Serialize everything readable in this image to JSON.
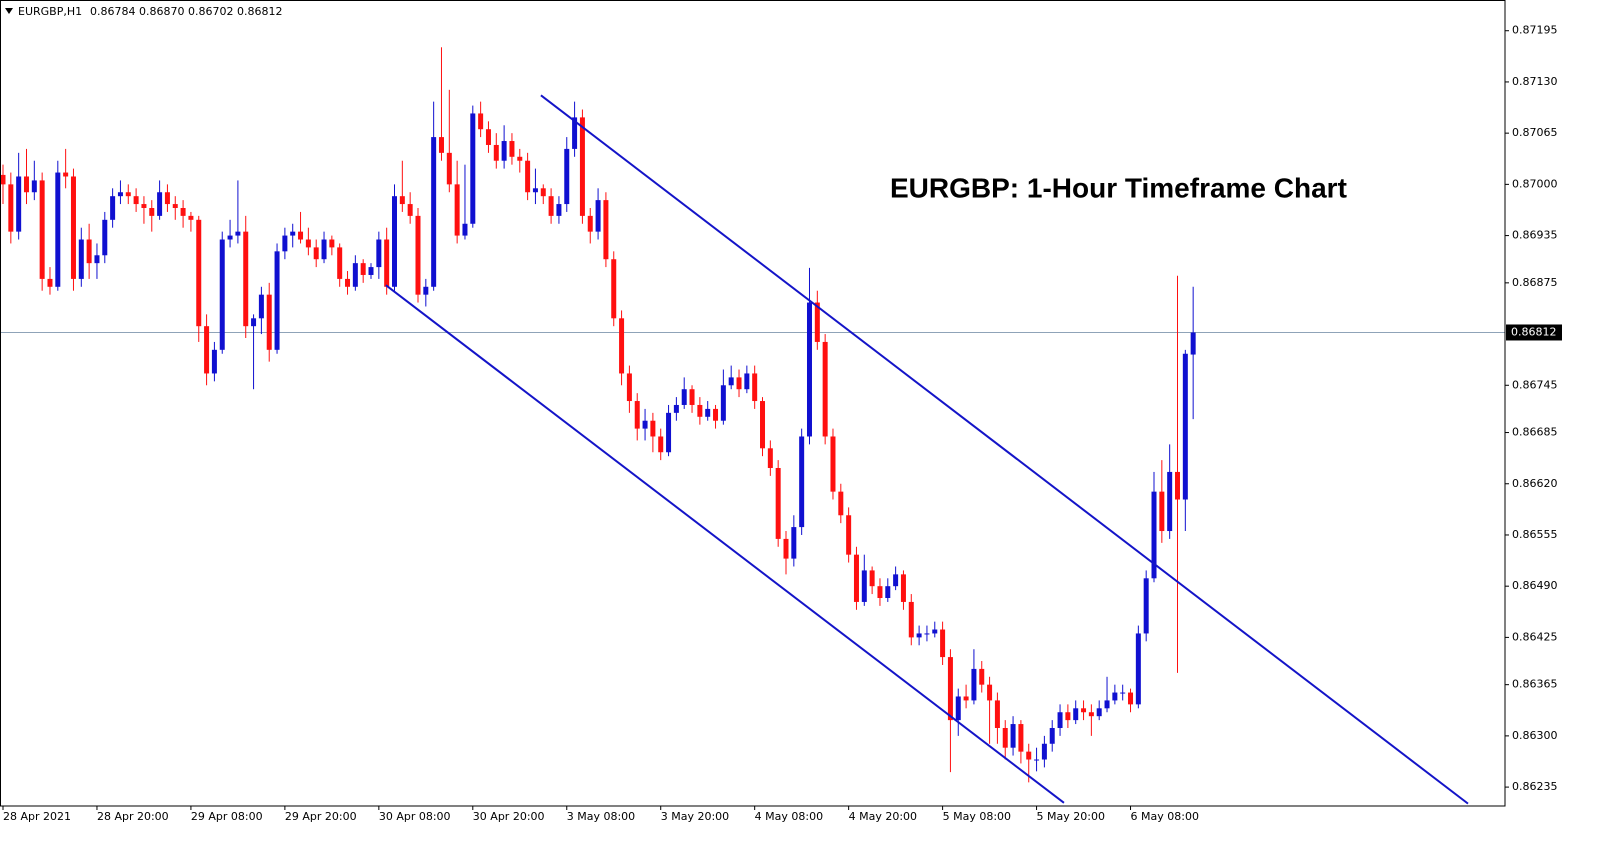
{
  "chart_data": {
    "type": "candlestick",
    "title": "EURGBP: 1-Hour Timeframe Chart",
    "symbol": "EURGBP,H1",
    "quote": "0.86784 0.86870 0.86702 0.86812",
    "up_color": "#1010d0",
    "down_color": "#ff1010",
    "trendline_color": "#1414c8",
    "price_line_color": "#8fa3b8",
    "ylim": [
      0.86211,
      0.87234
    ],
    "yticks": [
      0.87195,
      {
        "value": 0.8713,
        "label": "0.87130"
      },
      0.87065,
      {
        "value": 0.87,
        "label": "0.87000"
      },
      0.86935,
      0.86875,
      0.86745,
      0.86685,
      {
        "value": 0.8662,
        "label": "0.86620"
      },
      0.86555,
      {
        "value": 0.8649,
        "label": "0.86490"
      },
      0.86425,
      0.86365,
      {
        "value": 0.863,
        "label": "0.86300"
      },
      0.86235
    ],
    "current_price": 0.86812,
    "x_labels": [
      "28 Apr 2021",
      "28 Apr 20:00",
      "29 Apr 08:00",
      "29 Apr 20:00",
      "30 Apr 08:00",
      "30 Apr 20:00",
      "3 May 08:00",
      "3 May 20:00",
      "4 May 08:00",
      "4 May 20:00",
      "5 May 08:00",
      "5 May 20:00",
      "6 May 08:00"
    ],
    "trendlines": [
      {
        "x": [
          68.7,
          187.1
        ],
        "y": [
          0.87113,
          0.86214
        ]
      },
      {
        "x": [
          48.9,
          135.5
        ],
        "y": [
          0.86872,
          0.86215
        ]
      }
    ],
    "open": [
      0.87012,
      0.87,
      0.8694,
      0.8701,
      0.8699,
      0.87005,
      0.8688,
      0.8687,
      0.87015,
      0.8701,
      0.8688,
      0.8693,
      0.869,
      0.8691,
      0.86955,
      0.86985,
      0.8699,
      0.86985,
      0.86975,
      0.8697,
      0.8696,
      0.8699,
      0.86975,
      0.8697,
      0.8696,
      0.86955,
      0.8682,
      0.8676,
      0.8679,
      0.8693,
      0.86935,
      0.8694,
      0.8682,
      0.8683,
      0.8686,
      0.8679,
      0.86915,
      0.86935,
      0.8694,
      0.8693,
      0.8692,
      0.86905,
      0.8693,
      0.8692,
      0.8688,
      0.8687,
      0.869,
      0.86885,
      0.86895,
      0.8693,
      0.8687,
      0.86985,
      0.86975,
      0.8696,
      0.8686,
      0.8687,
      0.8706,
      0.8704,
      0.87,
      0.86935,
      0.8695,
      0.8709,
      0.8707,
      0.8705,
      0.8703,
      0.87055,
      0.87035,
      0.8703,
      0.8699,
      0.86995,
      0.86985,
      0.8696,
      0.86975,
      0.87045,
      0.87085,
      0.8696,
      0.8694,
      0.8698,
      0.86905,
      0.8683,
      0.8676,
      0.86725,
      0.8669,
      0.867,
      0.8668,
      0.8666,
      0.8671,
      0.8672,
      0.8674,
      0.8672,
      0.86705,
      0.86715,
      0.867,
      0.86745,
      0.86755,
      0.8674,
      0.8676,
      0.86725,
      0.86665,
      0.8664,
      0.8655,
      0.86525,
      0.86565,
      0.8668,
      0.8685,
      0.868,
      0.8668,
      0.8661,
      0.8658,
      0.8653,
      0.8647,
      0.8651,
      0.8649,
      0.86475,
      0.8649,
      0.86505,
      0.8647,
      0.86425,
      0.8643,
      0.8643,
      0.86435,
      0.864,
      0.8632,
      0.8635,
      0.86345,
      0.86385,
      0.86365,
      0.86345,
      0.8631,
      0.86285,
      0.86315,
      0.8628,
      0.8627,
      0.8627,
      0.8629,
      0.8631,
      0.8633,
      0.8632,
      0.86335,
      0.8633,
      0.86325,
      0.86335,
      0.86345,
      0.86355,
      0.86355,
      0.8634,
      0.8643,
      0.865,
      0.8661,
      0.8656,
      0.86635,
      0.866,
      0.86784
    ],
    "high": [
      0.87025,
      0.87015,
      0.8704,
      0.87045,
      0.8703,
      0.87015,
      0.86895,
      0.8703,
      0.87045,
      0.8702,
      0.86945,
      0.8695,
      0.86925,
      0.86965,
      0.86995,
      0.87005,
      0.87,
      0.86995,
      0.86985,
      0.8698,
      0.87005,
      0.87,
      0.86985,
      0.8698,
      0.86965,
      0.8696,
      0.86835,
      0.868,
      0.8694,
      0.86955,
      0.87005,
      0.8696,
      0.86835,
      0.8687,
      0.86875,
      0.86925,
      0.86945,
      0.8695,
      0.86965,
      0.86945,
      0.8693,
      0.8694,
      0.86935,
      0.86925,
      0.8689,
      0.8691,
      0.86905,
      0.869,
      0.8694,
      0.86945,
      0.87,
      0.8703,
      0.8699,
      0.8697,
      0.8688,
      0.87105,
      0.87174,
      0.8712,
      0.8703,
      0.87025,
      0.871,
      0.87105,
      0.8708,
      0.87065,
      0.87075,
      0.87065,
      0.87045,
      0.8704,
      0.8702,
      0.87,
      0.86995,
      0.86985,
      0.8706,
      0.87105,
      0.87095,
      0.8697,
      0.86995,
      0.8699,
      0.86915,
      0.8684,
      0.8677,
      0.86735,
      0.86715,
      0.8671,
      0.8669,
      0.8672,
      0.8673,
      0.86755,
      0.86745,
      0.8673,
      0.86725,
      0.8672,
      0.86765,
      0.8677,
      0.86765,
      0.8677,
      0.8677,
      0.8673,
      0.86675,
      0.8665,
      0.8656,
      0.8658,
      0.8669,
      0.86894,
      0.86865,
      0.8681,
      0.8669,
      0.8662,
      0.8659,
      0.8654,
      0.8653,
      0.86515,
      0.865,
      0.865,
      0.86515,
      0.8651,
      0.8648,
      0.8644,
      0.8644,
      0.86445,
      0.86445,
      0.8641,
      0.8636,
      0.86365,
      0.8641,
      0.86395,
      0.86375,
      0.86355,
      0.8632,
      0.86325,
      0.8632,
      0.8629,
      0.86285,
      0.863,
      0.8632,
      0.8634,
      0.8634,
      0.86345,
      0.86345,
      0.8634,
      0.86345,
      0.86375,
      0.86365,
      0.86365,
      0.8636,
      0.8644,
      0.8651,
      0.86635,
      0.8665,
      0.8667,
      0.86884,
      0.8679,
      0.8687
    ],
    "low": [
      0.86975,
      0.86925,
      0.8693,
      0.86975,
      0.8698,
      0.86865,
      0.8686,
      0.86865,
      0.86995,
      0.86865,
      0.8687,
      0.8688,
      0.8688,
      0.869,
      0.86945,
      0.86975,
      0.86975,
      0.86965,
      0.8695,
      0.8694,
      0.86955,
      0.86965,
      0.86955,
      0.86945,
      0.8694,
      0.868,
      0.86745,
      0.8675,
      0.86785,
      0.8692,
      0.86925,
      0.86805,
      0.8674,
      0.8681,
      0.86775,
      0.86785,
      0.86905,
      0.8692,
      0.86925,
      0.8691,
      0.86895,
      0.869,
      0.8691,
      0.8687,
      0.8686,
      0.86865,
      0.86875,
      0.8688,
      0.8688,
      0.8686,
      0.86865,
      0.86965,
      0.8695,
      0.8685,
      0.86845,
      0.86865,
      0.8703,
      0.8699,
      0.86925,
      0.8693,
      0.86945,
      0.8706,
      0.8704,
      0.8702,
      0.8702,
      0.87025,
      0.87015,
      0.8698,
      0.86975,
      0.86975,
      0.8695,
      0.8695,
      0.86965,
      0.87035,
      0.8695,
      0.86925,
      0.8693,
      0.86895,
      0.8682,
      0.86745,
      0.8671,
      0.86675,
      0.86675,
      0.8666,
      0.8665,
      0.86655,
      0.867,
      0.86715,
      0.8671,
      0.86695,
      0.867,
      0.8669,
      0.86695,
      0.8674,
      0.8673,
      0.86735,
      0.86715,
      0.86655,
      0.8663,
      0.8654,
      0.86505,
      0.86515,
      0.86555,
      0.8667,
      0.8679,
      0.8667,
      0.866,
      0.8657,
      0.8652,
      0.8646,
      0.86465,
      0.8648,
      0.86465,
      0.8647,
      0.86485,
      0.8646,
      0.86415,
      0.86415,
      0.8642,
      0.86425,
      0.8639,
      0.86254,
      0.863,
      0.86335,
      0.8634,
      0.86355,
      0.8629,
      0.8629,
      0.8627,
      0.86275,
      0.86265,
      0.86241,
      0.86255,
      0.8626,
      0.8628,
      0.863,
      0.8631,
      0.86315,
      0.8632,
      0.863,
      0.8632,
      0.8633,
      0.8634,
      0.86345,
      0.8633,
      0.86335,
      0.8642,
      0.86495,
      0.86545,
      0.8655,
      0.8638,
      0.8656,
      0.86702
    ],
    "close": [
      0.87,
      0.8694,
      0.8701,
      0.8699,
      0.87005,
      0.8688,
      0.8687,
      0.87015,
      0.8701,
      0.8688,
      0.8693,
      0.869,
      0.8691,
      0.86955,
      0.86985,
      0.8699,
      0.86985,
      0.86975,
      0.8697,
      0.8696,
      0.8699,
      0.86975,
      0.8697,
      0.8696,
      0.86955,
      0.8682,
      0.8676,
      0.8679,
      0.8693,
      0.86935,
      0.8694,
      0.8682,
      0.8683,
      0.8686,
      0.8679,
      0.86915,
      0.86935,
      0.8694,
      0.8693,
      0.8692,
      0.86905,
      0.8693,
      0.8692,
      0.8688,
      0.8687,
      0.869,
      0.86885,
      0.86895,
      0.8693,
      0.8687,
      0.86985,
      0.86975,
      0.8696,
      0.8686,
      0.8687,
      0.8706,
      0.8704,
      0.87,
      0.86935,
      0.8695,
      0.8709,
      0.8707,
      0.8705,
      0.8703,
      0.87055,
      0.87035,
      0.8703,
      0.8699,
      0.86995,
      0.86985,
      0.8696,
      0.86975,
      0.87045,
      0.87085,
      0.8696,
      0.8694,
      0.8698,
      0.86905,
      0.8683,
      0.8676,
      0.86725,
      0.8669,
      0.867,
      0.8668,
      0.8666,
      0.8671,
      0.8672,
      0.8674,
      0.8672,
      0.86705,
      0.86715,
      0.867,
      0.86745,
      0.86755,
      0.8674,
      0.8676,
      0.86725,
      0.86665,
      0.8664,
      0.8655,
      0.86525,
      0.86565,
      0.8668,
      0.8685,
      0.868,
      0.8668,
      0.8661,
      0.8658,
      0.8653,
      0.8647,
      0.8651,
      0.8649,
      0.86475,
      0.8649,
      0.86505,
      0.8647,
      0.86425,
      0.8643,
      0.8643,
      0.86435,
      0.864,
      0.8632,
      0.8635,
      0.86345,
      0.86385,
      0.86365,
      0.86345,
      0.8631,
      0.86285,
      0.86315,
      0.8628,
      0.8627,
      0.8627,
      0.8629,
      0.8631,
      0.8633,
      0.8632,
      0.86335,
      0.8633,
      0.86325,
      0.86335,
      0.86345,
      0.86355,
      0.86355,
      0.8634,
      0.8643,
      0.865,
      0.8661,
      0.8656,
      0.86635,
      0.866,
      0.86785,
      0.86812
    ]
  }
}
